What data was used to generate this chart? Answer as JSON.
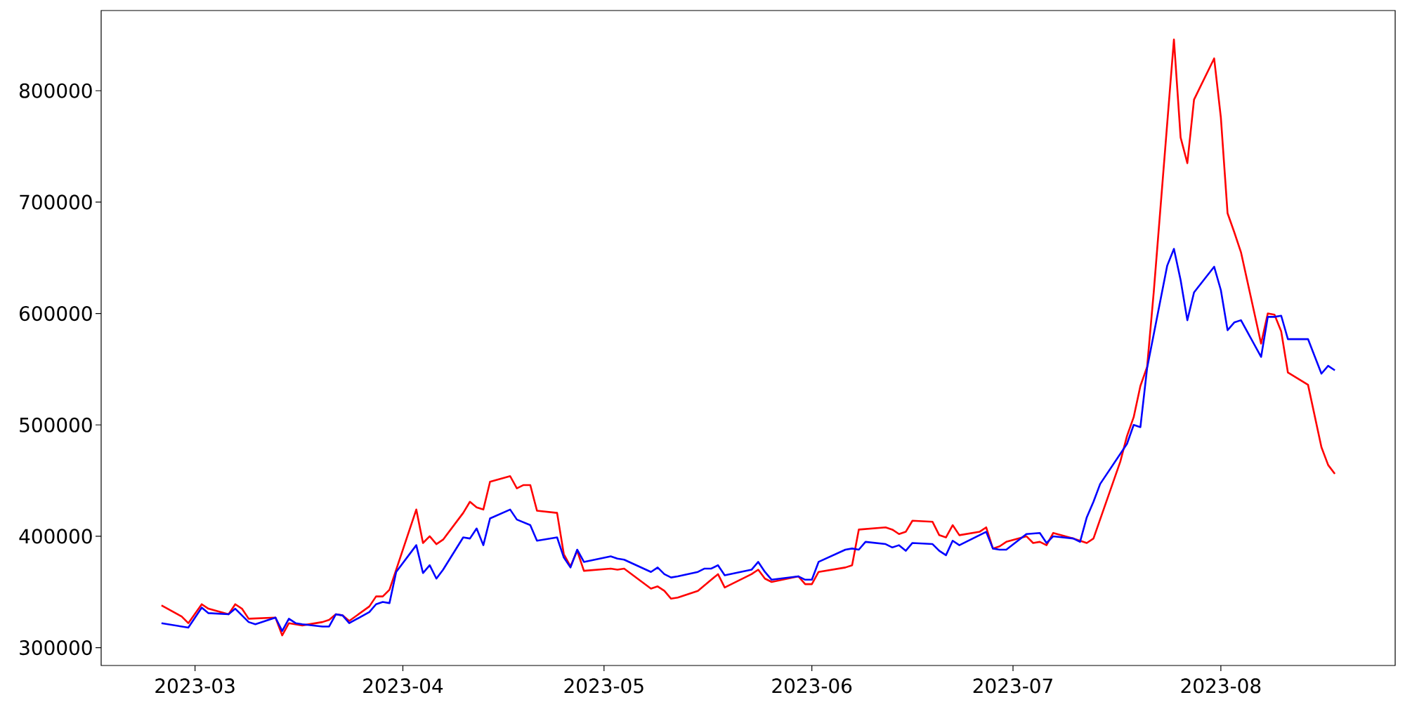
{
  "chart_data": {
    "type": "line",
    "xlim": [
      "2023-02-15",
      "2023-08-27"
    ],
    "ylim": [
      284000,
      872000
    ],
    "xticks": [
      "2023-03",
      "2023-04",
      "2023-05",
      "2023-06",
      "2023-07",
      "2023-08"
    ],
    "yticks": [
      300000,
      400000,
      500000,
      600000,
      700000,
      800000
    ],
    "series": [
      {
        "color": "#ff0000",
        "x": [
          "2023-02-24",
          "2023-02-27",
          "2023-02-28",
          "2023-03-02",
          "2023-03-03",
          "2023-03-06",
          "2023-03-07",
          "2023-03-08",
          "2023-03-09",
          "2023-03-13",
          "2023-03-14",
          "2023-03-15",
          "2023-03-17",
          "2023-03-20",
          "2023-03-21",
          "2023-03-22",
          "2023-03-23",
          "2023-03-24",
          "2023-03-27",
          "2023-03-28",
          "2023-03-29",
          "2023-03-30",
          "2023-03-31",
          "2023-04-03",
          "2023-04-04",
          "2023-04-05",
          "2023-04-06",
          "2023-04-07",
          "2023-04-10",
          "2023-04-11",
          "2023-04-12",
          "2023-04-13",
          "2023-04-14",
          "2023-04-17",
          "2023-04-18",
          "2023-04-19",
          "2023-04-20",
          "2023-04-21",
          "2023-04-24",
          "2023-04-25",
          "2023-04-26",
          "2023-04-27",
          "2023-04-28",
          "2023-05-02",
          "2023-05-03",
          "2023-05-04",
          "2023-05-08",
          "2023-05-09",
          "2023-05-10",
          "2023-05-11",
          "2023-05-12",
          "2023-05-15",
          "2023-05-17",
          "2023-05-18",
          "2023-05-19",
          "2023-05-23",
          "2023-05-24",
          "2023-05-25",
          "2023-05-26",
          "2023-05-30",
          "2023-05-31",
          "2023-06-01",
          "2023-06-02",
          "2023-06-06",
          "2023-06-07",
          "2023-06-08",
          "2023-06-12",
          "2023-06-13",
          "2023-06-14",
          "2023-06-15",
          "2023-06-16",
          "2023-06-19",
          "2023-06-20",
          "2023-06-21",
          "2023-06-22",
          "2023-06-23",
          "2023-06-26",
          "2023-06-27",
          "2023-06-28",
          "2023-06-29",
          "2023-06-30",
          "2023-07-03",
          "2023-07-04",
          "2023-07-05",
          "2023-07-06",
          "2023-07-07",
          "2023-07-10",
          "2023-07-11",
          "2023-07-12",
          "2023-07-13",
          "2023-07-17",
          "2023-07-18",
          "2023-07-19",
          "2023-07-20",
          "2023-07-21",
          "2023-07-22",
          "2023-07-25",
          "2023-07-26",
          "2023-07-27",
          "2023-07-28",
          "2023-07-31",
          "2023-08-01",
          "2023-08-02",
          "2023-08-03",
          "2023-08-04",
          "2023-08-07",
          "2023-08-08",
          "2023-08-09",
          "2023-08-10",
          "2023-08-11",
          "2023-08-14",
          "2023-08-16",
          "2023-08-17",
          "2023-08-18"
        ],
        "values": [
          338000,
          328000,
          322000,
          339000,
          335000,
          330000,
          339000,
          335000,
          326000,
          327000,
          311000,
          322000,
          320000,
          323000,
          325000,
          330000,
          329000,
          324000,
          337000,
          346000,
          346000,
          352000,
          370000,
          424000,
          394000,
          400000,
          393000,
          397000,
          421000,
          431000,
          426000,
          424000,
          449000,
          454000,
          443000,
          446000,
          446000,
          423000,
          421000,
          384000,
          373000,
          387000,
          369000,
          371000,
          370000,
          371000,
          353000,
          355000,
          351000,
          344000,
          345000,
          351000,
          361000,
          366000,
          354000,
          366000,
          370000,
          362000,
          359000,
          364000,
          357000,
          357000,
          368000,
          372000,
          374000,
          406000,
          408000,
          406000,
          402000,
          404000,
          414000,
          413000,
          401000,
          399000,
          410000,
          401000,
          404000,
          408000,
          389000,
          391000,
          395000,
          400000,
          394000,
          395000,
          392000,
          403000,
          398000,
          396000,
          394000,
          398000,
          467000,
          490000,
          507000,
          535000,
          552000,
          620000,
          846000,
          758000,
          735000,
          792000,
          829000,
          776000,
          690000,
          673000,
          655000,
          573000,
          600000,
          599000,
          584000,
          547000,
          536000,
          480000,
          464000,
          456000
        ]
      },
      {
        "color": "#0000ff",
        "x": [
          "2023-02-24",
          "2023-02-28",
          "2023-03-02",
          "2023-03-03",
          "2023-03-06",
          "2023-03-07",
          "2023-03-09",
          "2023-03-10",
          "2023-03-13",
          "2023-03-14",
          "2023-03-15",
          "2023-03-16",
          "2023-03-17",
          "2023-03-20",
          "2023-03-21",
          "2023-03-22",
          "2023-03-23",
          "2023-03-24",
          "2023-03-27",
          "2023-03-28",
          "2023-03-29",
          "2023-03-30",
          "2023-03-31",
          "2023-04-03",
          "2023-04-04",
          "2023-04-05",
          "2023-04-06",
          "2023-04-07",
          "2023-04-10",
          "2023-04-11",
          "2023-04-12",
          "2023-04-13",
          "2023-04-14",
          "2023-04-17",
          "2023-04-18",
          "2023-04-20",
          "2023-04-21",
          "2023-04-24",
          "2023-04-25",
          "2023-04-26",
          "2023-04-27",
          "2023-04-28",
          "2023-05-02",
          "2023-05-03",
          "2023-05-04",
          "2023-05-08",
          "2023-05-09",
          "2023-05-10",
          "2023-05-11",
          "2023-05-12",
          "2023-05-15",
          "2023-05-16",
          "2023-05-17",
          "2023-05-18",
          "2023-05-19",
          "2023-05-23",
          "2023-05-24",
          "2023-05-25",
          "2023-05-26",
          "2023-05-30",
          "2023-05-31",
          "2023-06-01",
          "2023-06-02",
          "2023-06-06",
          "2023-06-07",
          "2023-06-08",
          "2023-06-09",
          "2023-06-12",
          "2023-06-13",
          "2023-06-14",
          "2023-06-15",
          "2023-06-16",
          "2023-06-19",
          "2023-06-20",
          "2023-06-21",
          "2023-06-22",
          "2023-06-23",
          "2023-06-27",
          "2023-06-28",
          "2023-06-29",
          "2023-06-30",
          "2023-07-03",
          "2023-07-05",
          "2023-07-06",
          "2023-07-07",
          "2023-07-10",
          "2023-07-11",
          "2023-07-12",
          "2023-07-13",
          "2023-07-14",
          "2023-07-18",
          "2023-07-19",
          "2023-07-20",
          "2023-07-21",
          "2023-07-24",
          "2023-07-25",
          "2023-07-26",
          "2023-07-27",
          "2023-07-28",
          "2023-07-31",
          "2023-08-01",
          "2023-08-02",
          "2023-08-03",
          "2023-08-04",
          "2023-08-07",
          "2023-08-08",
          "2023-08-09",
          "2023-08-10",
          "2023-08-11",
          "2023-08-14",
          "2023-08-16",
          "2023-08-17",
          "2023-08-18"
        ],
        "values": [
          322000,
          318000,
          336000,
          331000,
          330000,
          335000,
          323000,
          321000,
          327000,
          315000,
          326000,
          322000,
          321000,
          319000,
          319000,
          330000,
          329000,
          322000,
          332000,
          339000,
          341000,
          340000,
          368000,
          392000,
          367000,
          374000,
          362000,
          370000,
          399000,
          398000,
          407000,
          392000,
          416000,
          424000,
          415000,
          410000,
          396000,
          399000,
          381000,
          372000,
          388000,
          377000,
          382000,
          380000,
          379000,
          368000,
          372000,
          366000,
          363000,
          364000,
          368000,
          371000,
          371000,
          374000,
          365000,
          370000,
          377000,
          368000,
          361000,
          364000,
          361000,
          361000,
          377000,
          388000,
          389000,
          388000,
          395000,
          393000,
          390000,
          392000,
          387000,
          394000,
          393000,
          387000,
          383000,
          396000,
          392000,
          404000,
          389000,
          388000,
          388000,
          402000,
          403000,
          394000,
          400000,
          398000,
          395000,
          417000,
          431000,
          447000,
          483000,
          500000,
          498000,
          551000,
          643000,
          658000,
          630000,
          594000,
          619000,
          642000,
          621000,
          585000,
          592000,
          594000,
          561000,
          597000,
          597000,
          598000,
          577000,
          577000,
          546000,
          553000,
          549000
        ]
      }
    ]
  }
}
